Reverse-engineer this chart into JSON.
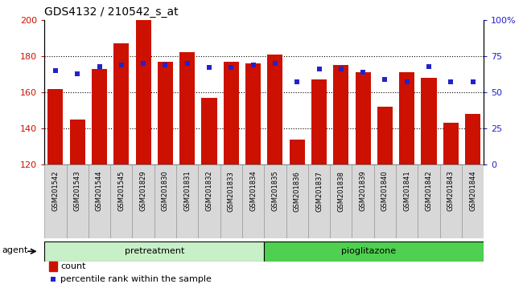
{
  "title": "GDS4132 / 210542_s_at",
  "samples": [
    "GSM201542",
    "GSM201543",
    "GSM201544",
    "GSM201545",
    "GSM201829",
    "GSM201830",
    "GSM201831",
    "GSM201832",
    "GSM201833",
    "GSM201834",
    "GSM201835",
    "GSM201836",
    "GSM201837",
    "GSM201838",
    "GSM201839",
    "GSM201840",
    "GSM201841",
    "GSM201842",
    "GSM201843",
    "GSM201844"
  ],
  "counts": [
    162,
    145,
    173,
    187,
    200,
    177,
    182,
    157,
    177,
    176,
    181,
    134,
    167,
    175,
    171,
    152,
    171,
    168,
    143,
    148
  ],
  "percentiles": [
    65,
    63,
    68,
    69,
    70,
    69,
    70,
    67,
    67,
    69,
    70,
    57,
    66,
    66,
    64,
    59,
    57,
    68,
    57,
    57
  ],
  "group_labels": [
    "pretreatment",
    "pioglitazone"
  ],
  "group_split": 10,
  "group_color_pre": "#c8f0c8",
  "group_color_pio": "#50d050",
  "bar_color": "#cc1100",
  "dot_color": "#2222cc",
  "ylim_left": [
    120,
    200
  ],
  "ylim_right": [
    0,
    100
  ],
  "yticks_left": [
    120,
    140,
    160,
    180,
    200
  ],
  "yticks_right": [
    0,
    25,
    50,
    75,
    100
  ],
  "ytick_labels_right": [
    "0",
    "25",
    "50",
    "75",
    "100%"
  ],
  "background_color": "#ffffff",
  "xtick_bg_color": "#d8d8d8",
  "bar_width": 0.7,
  "agent_label": "agent",
  "legend_count_label": "count",
  "legend_pct_label": "percentile rank within the sample",
  "title_fontsize": 10,
  "tick_fontsize": 8,
  "xtick_fontsize": 6,
  "legend_fontsize": 8
}
